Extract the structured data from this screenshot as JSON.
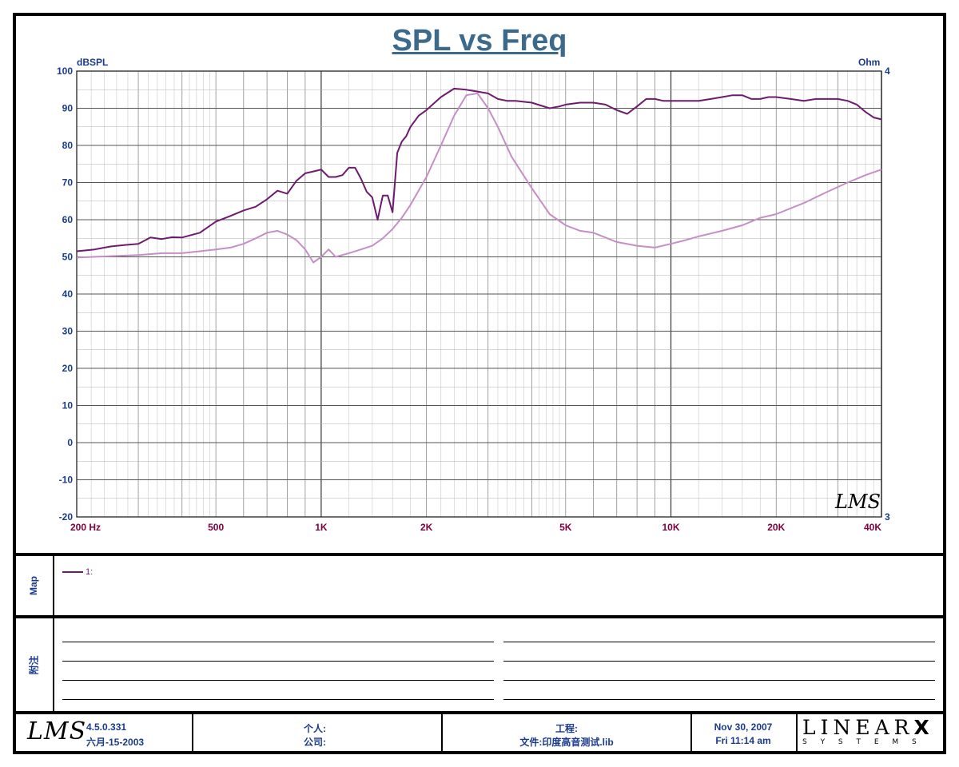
{
  "chart_data": {
    "type": "line",
    "title": "SPL vs Freq",
    "xscale": "log",
    "xlim": [
      200,
      40000
    ],
    "ylabel_left": "dBSPL",
    "ylim_left": [
      -20,
      100
    ],
    "ylabel_right": "Ohm",
    "ylim_right": [
      3,
      4
    ],
    "x_tick_labels": [
      "200 Hz",
      "500",
      "1K",
      "2K",
      "5K",
      "10K",
      "20K",
      "40K"
    ],
    "y_tick_labels_left": [
      "100",
      "90",
      "80",
      "70",
      "60",
      "50",
      "40",
      "30",
      "20",
      "10",
      "0",
      "-10",
      "-20"
    ],
    "y_tick_labels_right": [
      "4",
      "3"
    ],
    "grid": true,
    "series": [
      {
        "name": "1:",
        "color": "#6e1a6e",
        "x": [
          200,
          225,
          250,
          275,
          300,
          325,
          350,
          375,
          400,
          450,
          500,
          550,
          600,
          650,
          700,
          750,
          800,
          850,
          900,
          950,
          1000,
          1050,
          1100,
          1150,
          1200,
          1250,
          1300,
          1350,
          1400,
          1450,
          1500,
          1550,
          1600,
          1650,
          1700,
          1750,
          1800,
          1900,
          2000,
          2200,
          2400,
          2600,
          2800,
          3000,
          3200,
          3400,
          3600,
          4000,
          4500,
          4800,
          5000,
          5500,
          6000,
          6500,
          7000,
          7500,
          8000,
          8500,
          9000,
          9500,
          10000,
          11000,
          12000,
          13000,
          14000,
          15000,
          16000,
          17000,
          18000,
          19000,
          20000,
          22000,
          24000,
          26000,
          28000,
          30000,
          32000,
          34000,
          36000,
          38000,
          40000
        ],
        "y": [
          51.5,
          52.0,
          52.8,
          53.2,
          53.5,
          55.2,
          54.8,
          55.3,
          55.2,
          56.5,
          59.5,
          61.0,
          62.5,
          63.5,
          65.5,
          67.8,
          67.0,
          70.5,
          72.5,
          73.0,
          73.5,
          71.5,
          71.5,
          72.0,
          74.0,
          74.0,
          71.0,
          67.5,
          66.0,
          60.0,
          66.5,
          66.5,
          62.0,
          78.0,
          81.0,
          82.5,
          85.0,
          88.0,
          89.5,
          93.0,
          95.3,
          95.0,
          94.5,
          94.0,
          92.5,
          92.0,
          92.0,
          91.5,
          90.0,
          90.5,
          91.0,
          91.5,
          91.5,
          91.0,
          89.5,
          88.5,
          90.5,
          92.5,
          92.5,
          92.0,
          92.0,
          92.0,
          92.0,
          92.5,
          93.0,
          93.5,
          93.5,
          92.5,
          92.5,
          93.0,
          93.0,
          92.5,
          92.0,
          92.5,
          92.5,
          92.5,
          92.0,
          91.0,
          89.0,
          87.5,
          87.0
        ]
      },
      {
        "name": "",
        "color": "#c68ec6",
        "x": [
          200,
          250,
          300,
          350,
          400,
          450,
          500,
          550,
          600,
          650,
          700,
          750,
          800,
          850,
          900,
          950,
          1000,
          1050,
          1100,
          1150,
          1200,
          1300,
          1400,
          1500,
          1600,
          1700,
          1800,
          2000,
          2200,
          2400,
          2600,
          2800,
          3000,
          3200,
          3500,
          4000,
          4500,
          5000,
          5500,
          6000,
          7000,
          8000,
          9000,
          10000,
          11000,
          12000,
          14000,
          16000,
          18000,
          20000,
          24000,
          28000,
          32000,
          36000,
          40000
        ],
        "y": [
          49.8,
          50.2,
          50.5,
          51.0,
          51.0,
          51.5,
          52.0,
          52.5,
          53.5,
          55.0,
          56.5,
          57.0,
          56.0,
          54.5,
          52.0,
          48.5,
          50.0,
          52.0,
          50.0,
          50.5,
          51.0,
          52.0,
          53.0,
          55.0,
          57.5,
          60.5,
          64.0,
          71.5,
          80.0,
          88.0,
          93.5,
          94.0,
          90.0,
          85.0,
          77.0,
          68.5,
          61.5,
          58.5,
          57.0,
          56.5,
          54.0,
          53.0,
          52.5,
          53.5,
          54.5,
          55.5,
          57.0,
          58.5,
          60.5,
          61.5,
          64.5,
          67.5,
          70.0,
          72.0,
          73.5
        ]
      }
    ]
  },
  "map_panel": {
    "label": "Map",
    "legend_entry": "1:"
  },
  "notes_panel": {
    "label": "附注"
  },
  "footer": {
    "version": "4.5.0.331",
    "build_date": "六月-15-2003",
    "person_label": "个人:",
    "company_label": "公司:",
    "project_label": "工程:",
    "file_label": "文件:印度高音测试.lib",
    "date": "Nov 30, 2007",
    "time": "Fri 11:14 am",
    "brand": "LINEAR",
    "brand_x": "X",
    "brand_sub": "S Y S T E M S",
    "logo_text": "LMS"
  },
  "watermark": "LMS"
}
